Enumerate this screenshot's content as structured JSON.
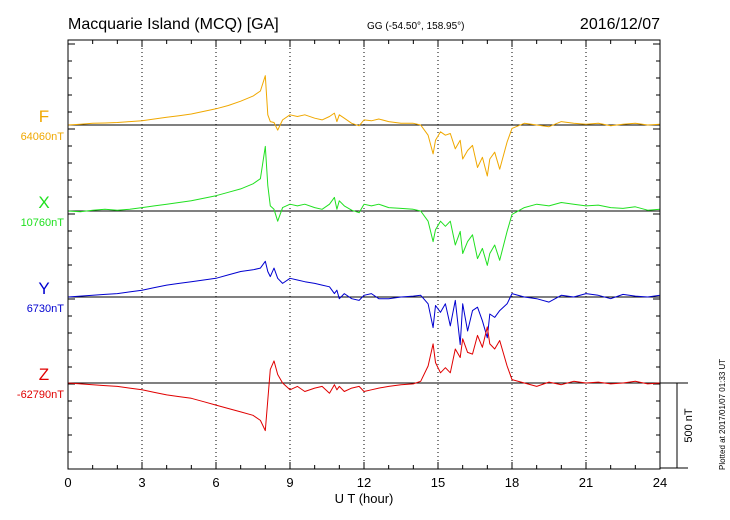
{
  "header": {
    "title": "Macquarie Island (MCQ)  [GA]",
    "coords": "GG (-54.50°, 158.95°)",
    "date": "2016/12/07"
  },
  "footer": {
    "plotted": "Plotted at 2017/01/07 01:33 UT"
  },
  "chart_data": {
    "type": "line",
    "xlabel": "U T (hour)",
    "xlim": [
      0,
      24
    ],
    "x_ticks": [
      "0",
      "3",
      "6",
      "9",
      "12",
      "15",
      "18",
      "21",
      "24"
    ],
    "grid": true,
    "scale_bar": {
      "label": "500 nT",
      "value_nT": 500
    },
    "series": [
      {
        "name": "F",
        "baseline_label": "64060nT",
        "baseline_nT": 64060,
        "color": "#f0a800",
        "x": [
          0,
          0.5,
          1,
          1.5,
          2,
          2.5,
          3,
          3.5,
          4,
          4.5,
          5,
          5.5,
          6,
          6.5,
          7,
          7.5,
          7.8,
          8.0,
          8.1,
          8.2,
          8.35,
          8.5,
          8.7,
          9,
          9.3,
          9.6,
          10,
          10.3,
          10.6,
          10.8,
          10.9,
          11,
          11.2,
          11.5,
          11.8,
          12,
          12.3,
          12.6,
          13,
          13.5,
          14,
          14.3,
          14.6,
          14.8,
          14.9,
          15.1,
          15.3,
          15.5,
          15.7,
          15.9,
          16.0,
          16.2,
          16.4,
          16.6,
          16.8,
          17.0,
          17.1,
          17.3,
          17.5,
          17.8,
          18,
          18.5,
          19,
          19.5,
          20,
          20.5,
          21,
          21.5,
          22,
          22.5,
          23,
          23.5,
          24
        ],
        "y": [
          0,
          5,
          10,
          12,
          15,
          20,
          25,
          35,
          45,
          55,
          65,
          80,
          95,
          115,
          140,
          170,
          200,
          290,
          60,
          20,
          15,
          -30,
          30,
          60,
          50,
          60,
          40,
          30,
          50,
          70,
          20,
          60,
          40,
          10,
          -5,
          30,
          25,
          35,
          20,
          10,
          10,
          0,
          -60,
          -170,
          -90,
          -40,
          -60,
          -50,
          -140,
          -90,
          -200,
          -150,
          -120,
          -250,
          -190,
          -300,
          -200,
          -160,
          -260,
          -100,
          -20,
          10,
          0,
          -10,
          20,
          10,
          5,
          10,
          -5,
          5,
          10,
          0,
          5
        ]
      },
      {
        "name": "X",
        "baseline_label": "10760nT",
        "baseline_nT": 10760,
        "color": "#20e020",
        "x": [
          0,
          0.5,
          1,
          1.5,
          2,
          2.5,
          3,
          3.5,
          4,
          4.5,
          5,
          5.5,
          6,
          6.5,
          7,
          7.5,
          7.8,
          8.0,
          8.1,
          8.2,
          8.35,
          8.5,
          8.7,
          9,
          9.3,
          9.6,
          10,
          10.3,
          10.6,
          10.8,
          10.9,
          11,
          11.2,
          11.5,
          11.8,
          12,
          12.3,
          12.6,
          13,
          13.5,
          14,
          14.3,
          14.6,
          14.8,
          14.9,
          15.1,
          15.3,
          15.5,
          15.7,
          15.9,
          16.0,
          16.2,
          16.4,
          16.6,
          16.8,
          17.0,
          17.1,
          17.3,
          17.5,
          17.8,
          18,
          18.5,
          19,
          19.5,
          20,
          20.5,
          21,
          21.5,
          22,
          22.5,
          23,
          23.5,
          24
        ],
        "y": [
          0,
          -5,
          5,
          10,
          5,
          10,
          20,
          30,
          40,
          50,
          60,
          75,
          90,
          110,
          130,
          160,
          190,
          380,
          150,
          30,
          10,
          -60,
          20,
          40,
          30,
          40,
          20,
          10,
          40,
          80,
          10,
          60,
          30,
          5,
          -10,
          40,
          30,
          40,
          20,
          15,
          10,
          0,
          -60,
          -180,
          -110,
          -60,
          -90,
          -60,
          -200,
          -120,
          -250,
          -180,
          -140,
          -280,
          -220,
          -320,
          -250,
          -200,
          -290,
          -120,
          -20,
          20,
          40,
          30,
          50,
          40,
          30,
          35,
          20,
          15,
          25,
          5,
          10
        ]
      },
      {
        "name": "Y",
        "baseline_label": "6730nT",
        "baseline_nT": 6730,
        "color": "#0000d0",
        "x": [
          0,
          0.5,
          1,
          1.5,
          2,
          2.5,
          3,
          3.5,
          4,
          4.5,
          5,
          5.5,
          6,
          6.5,
          7,
          7.5,
          7.8,
          8.0,
          8.1,
          8.2,
          8.35,
          8.5,
          8.7,
          9,
          9.3,
          9.6,
          10,
          10.3,
          10.6,
          10.8,
          10.9,
          11,
          11.2,
          11.5,
          11.8,
          12,
          12.3,
          12.6,
          13,
          13.5,
          14,
          14.3,
          14.6,
          14.8,
          14.9,
          15.1,
          15.3,
          15.5,
          15.7,
          15.9,
          16.0,
          16.2,
          16.4,
          16.6,
          16.8,
          17.0,
          17.1,
          17.3,
          17.5,
          17.8,
          18,
          18.5,
          19,
          19.5,
          20,
          20.5,
          21,
          21.5,
          22,
          22.5,
          23,
          23.5,
          24
        ],
        "y": [
          0,
          5,
          10,
          15,
          20,
          30,
          40,
          55,
          70,
          80,
          90,
          100,
          110,
          130,
          150,
          160,
          170,
          210,
          150,
          120,
          170,
          110,
          80,
          110,
          100,
          90,
          80,
          70,
          60,
          20,
          40,
          -10,
          20,
          -10,
          -20,
          10,
          20,
          -10,
          -10,
          0,
          5,
          10,
          -40,
          -180,
          -50,
          -90,
          -40,
          -170,
          -20,
          -280,
          -40,
          -200,
          -80,
          -60,
          -140,
          -240,
          -100,
          -120,
          -80,
          -40,
          20,
          0,
          -10,
          -30,
          10,
          0,
          20,
          10,
          -10,
          15,
          5,
          0,
          10
        ]
      },
      {
        "name": "Z",
        "baseline_label": "-62790nT",
        "baseline_nT": -62790,
        "color": "#e00000",
        "x": [
          0,
          0.5,
          1,
          1.5,
          2,
          2.5,
          3,
          3.5,
          4,
          4.5,
          5,
          5.5,
          6,
          6.5,
          7,
          7.5,
          7.8,
          8.0,
          8.1,
          8.2,
          8.35,
          8.5,
          8.7,
          9,
          9.3,
          9.6,
          10,
          10.3,
          10.6,
          10.8,
          10.9,
          11,
          11.2,
          11.5,
          11.8,
          12,
          12.3,
          12.6,
          13,
          13.5,
          14,
          14.3,
          14.6,
          14.8,
          14.9,
          15.1,
          15.3,
          15.5,
          15.7,
          15.9,
          16.0,
          16.2,
          16.4,
          16.6,
          16.8,
          17.0,
          17.1,
          17.3,
          17.5,
          17.8,
          18,
          18.5,
          19,
          19.5,
          20,
          20.5,
          21,
          21.5,
          22,
          22.5,
          23,
          23.5,
          24
        ],
        "y": [
          0,
          -5,
          -10,
          -15,
          -20,
          -30,
          -40,
          -55,
          -70,
          -80,
          -90,
          -110,
          -130,
          -150,
          -170,
          -190,
          -220,
          -280,
          -100,
          80,
          130,
          50,
          0,
          -40,
          -20,
          -50,
          -30,
          -20,
          -60,
          -10,
          -40,
          -20,
          -50,
          -30,
          -20,
          -50,
          -40,
          -30,
          -20,
          -10,
          -5,
          10,
          100,
          230,
          120,
          60,
          90,
          60,
          200,
          150,
          260,
          180,
          170,
          280,
          210,
          330,
          230,
          200,
          250,
          100,
          20,
          0,
          -20,
          5,
          -10,
          10,
          0,
          5,
          -5,
          0,
          10,
          -5,
          0
        ]
      }
    ]
  }
}
